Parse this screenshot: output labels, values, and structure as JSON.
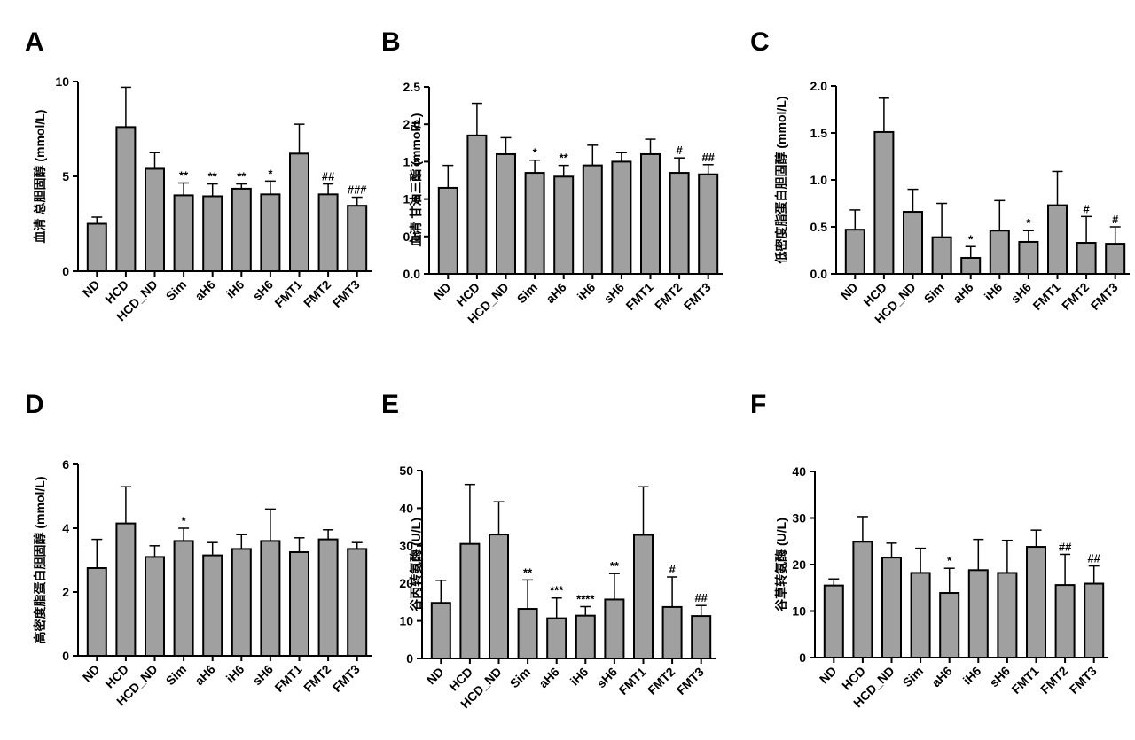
{
  "style": {
    "bar_fill": "#a0a0a0",
    "bar_stroke": "#000000",
    "axis_color": "#000000"
  },
  "chart_data": [
    {
      "panel": "A",
      "type": "bar",
      "ylabel": "血清 总胆固醇 (mmol/L)",
      "categories": [
        "ND",
        "HCD",
        "HCD_ND",
        "Sim",
        "aH6",
        "iH6",
        "sH6",
        "FMT1",
        "FMT2",
        "FMT3"
      ],
      "values": [
        2.5,
        7.6,
        5.4,
        4.0,
        3.95,
        4.35,
        4.05,
        6.2,
        4.05,
        3.45
      ],
      "errors": [
        0.35,
        2.1,
        0.85,
        0.65,
        0.65,
        0.25,
        0.7,
        1.55,
        0.55,
        0.45
      ],
      "significance": [
        "",
        "",
        "",
        "**",
        "**",
        "**",
        "*",
        "",
        "##",
        "###"
      ],
      "ylim": [
        0,
        10
      ],
      "yticks": [
        0,
        5,
        10
      ]
    },
    {
      "panel": "B",
      "type": "bar",
      "ylabel": "血清 甘油三酯 (mmol/L)",
      "categories": [
        "ND",
        "HCD",
        "HCD_ND",
        "Sim",
        "aH6",
        "iH6",
        "sH6",
        "FMT1",
        "FMT2",
        "FMT3"
      ],
      "values": [
        1.15,
        1.85,
        1.6,
        1.35,
        1.3,
        1.45,
        1.5,
        1.6,
        1.35,
        1.33
      ],
      "errors": [
        0.3,
        0.43,
        0.22,
        0.17,
        0.15,
        0.27,
        0.12,
        0.2,
        0.2,
        0.13
      ],
      "significance": [
        "",
        "",
        "",
        "*",
        "**",
        "",
        "",
        "",
        "#",
        "##"
      ],
      "ylim": [
        0,
        2.5
      ],
      "yticks": [
        "0.0",
        "0.5",
        "1.0",
        "1.5",
        "2.0",
        "2.5"
      ]
    },
    {
      "panel": "C",
      "type": "bar",
      "ylabel": "低密度脂蛋白胆固醇 (mmol/L)",
      "categories": [
        "ND",
        "HCD",
        "HCD_ND",
        "Sim",
        "aH6",
        "iH6",
        "sH6",
        "FMT1",
        "FMT2",
        "FMT3"
      ],
      "values": [
        0.47,
        1.51,
        0.66,
        0.39,
        0.17,
        0.46,
        0.34,
        0.73,
        0.33,
        0.32
      ],
      "errors": [
        0.21,
        0.36,
        0.24,
        0.36,
        0.12,
        0.32,
        0.12,
        0.36,
        0.28,
        0.18
      ],
      "significance": [
        "",
        "",
        "",
        "",
        "*",
        "",
        "*",
        "",
        "#",
        "#"
      ],
      "ylim": [
        0,
        2.0
      ],
      "yticks": [
        "0.0",
        "0.5",
        "1.0",
        "1.5",
        "2.0"
      ]
    },
    {
      "panel": "D",
      "type": "bar",
      "ylabel": "高密度脂蛋白胆固醇 (mmol/L)",
      "categories": [
        "ND",
        "HCD",
        "HCD_ND",
        "Sim",
        "aH6",
        "iH6",
        "sH6",
        "FMT1",
        "FMT2",
        "FMT3"
      ],
      "values": [
        2.75,
        4.15,
        3.1,
        3.6,
        3.15,
        3.35,
        3.6,
        3.25,
        3.65,
        3.35
      ],
      "errors": [
        0.9,
        1.15,
        0.35,
        0.4,
        0.4,
        0.45,
        1.0,
        0.45,
        0.3,
        0.2
      ],
      "significance": [
        "",
        "",
        "",
        "*",
        "",
        "",
        "",
        "",
        "",
        ""
      ],
      "ylim": [
        0,
        6
      ],
      "yticks": [
        0,
        2,
        4,
        6
      ]
    },
    {
      "panel": "E",
      "type": "bar",
      "ylabel": "谷丙转氨酶 (U/L)",
      "categories": [
        "ND",
        "HCD",
        "HCD_ND",
        "Sim",
        "aH6",
        "iH6",
        "sH6",
        "FMT1",
        "FMT2",
        "FMT3"
      ],
      "values": [
        14.8,
        30.5,
        33.0,
        13.2,
        10.7,
        11.4,
        15.7,
        32.9,
        13.7,
        11.3
      ],
      "errors": [
        6.0,
        15.8,
        8.7,
        7.7,
        5.4,
        2.4,
        6.9,
        12.8,
        8.0,
        2.8
      ],
      "significance": [
        "",
        "",
        "",
        "**",
        "***",
        "****",
        "**",
        "",
        "#",
        "##"
      ],
      "ylim": [
        0,
        50
      ],
      "yticks": [
        0,
        10,
        20,
        30,
        40,
        50
      ]
    },
    {
      "panel": "F",
      "type": "bar",
      "ylabel": "谷草转氨酶 (U/L)",
      "categories": [
        "ND",
        "HCD",
        "HCD_ND",
        "Sim",
        "aH6",
        "iH6",
        "sH6",
        "FMT1",
        "FMT2",
        "FMT3"
      ],
      "values": [
        15.5,
        24.9,
        21.5,
        18.2,
        13.9,
        18.8,
        18.2,
        23.8,
        15.6,
        15.9
      ],
      "errors": [
        1.4,
        5.4,
        3.1,
        5.3,
        5.3,
        6.6,
        7.0,
        3.6,
        6.6,
        3.8
      ],
      "significance": [
        "",
        "",
        "",
        "",
        "*",
        "",
        "",
        "",
        "##",
        "##"
      ],
      "ylim": [
        0,
        40
      ],
      "yticks": [
        0,
        10,
        20,
        30,
        40
      ]
    }
  ]
}
